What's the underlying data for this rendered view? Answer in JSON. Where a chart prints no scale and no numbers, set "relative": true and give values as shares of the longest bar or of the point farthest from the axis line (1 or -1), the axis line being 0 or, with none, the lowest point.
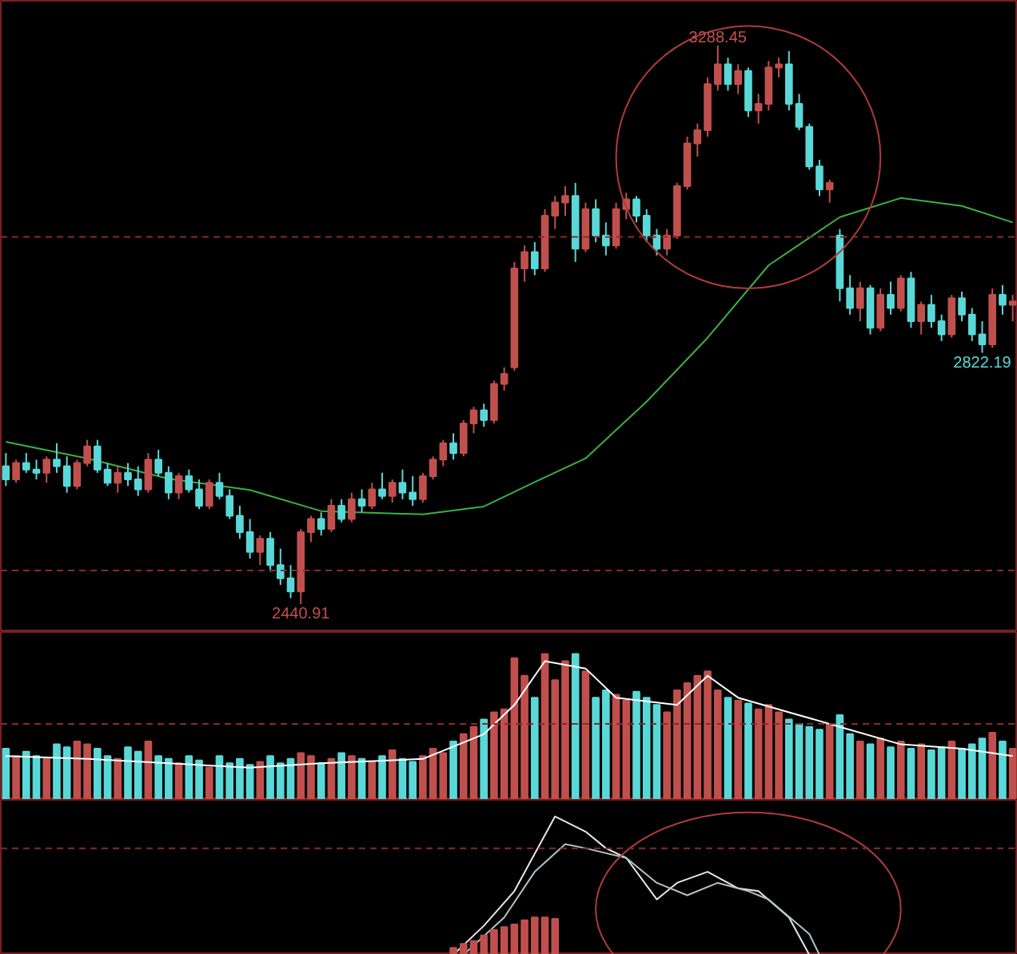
{
  "chart_data": [
    {
      "type": "candlestick",
      "tick_labels": false,
      "categories": [
        null,
        null,
        null,
        null,
        null,
        null,
        null,
        null,
        null,
        null,
        null,
        null,
        null,
        null,
        null,
        null,
        null,
        null,
        null,
        null,
        null,
        null,
        null,
        null,
        null,
        null,
        null,
        null,
        null,
        null,
        null,
        null,
        null,
        null,
        null,
        null,
        null,
        null,
        null,
        null,
        null,
        null,
        null,
        null,
        null,
        null,
        null,
        null,
        null,
        null,
        null,
        null,
        null,
        null,
        null,
        null,
        null,
        null,
        null,
        null,
        null,
        null,
        null,
        null,
        null,
        null,
        null,
        null,
        null,
        null,
        null,
        null,
        null,
        null,
        null,
        null,
        null,
        null,
        null,
        null,
        null,
        null,
        null,
        null,
        null,
        null,
        null,
        null,
        null,
        null,
        null,
        null,
        null,
        null,
        null,
        null,
        null,
        null,
        null,
        null
      ],
      "colors": [
        "#5ad8d8",
        "#c0504d",
        "#5ad8d8",
        "#5ad8d8",
        "#c0504d",
        "#5ad8d8",
        "#5ad8d8",
        "#c0504d",
        "#c0504d",
        "#5ad8d8",
        "#5ad8d8",
        "#c0504d",
        "#5ad8d8",
        "#5ad8d8",
        "#c0504d",
        "#5ad8d8",
        "#5ad8d8",
        "#c0504d",
        "#5ad8d8",
        "#5ad8d8",
        "#c0504d",
        "#5ad8d8",
        "#5ad8d8",
        "#5ad8d8",
        "#5ad8d8",
        "#c0504d",
        "#5ad8d8",
        "#5ad8d8",
        "#5ad8d8",
        "#c0504d",
        "#c0504d",
        "#5ad8d8",
        "#c0504d",
        "#5ad8d8",
        "#c0504d",
        "#5ad8d8",
        "#c0504d",
        "#5ad8d8",
        "#c0504d",
        "#5ad8d8",
        "#5ad8d8",
        "#c0504d",
        "#c0504d",
        "#c0504d",
        "#5ad8d8",
        "#c0504d",
        "#c0504d",
        "#5ad8d8",
        "#c0504d",
        "#c0504d",
        "#c0504d",
        "#c0504d",
        "#5ad8d8",
        "#c0504d",
        "#c0504d",
        "#c0504d",
        "#5ad8d8",
        "#c0504d",
        "#5ad8d8",
        "#5ad8d8",
        "#c0504d",
        "#c0504d",
        "#5ad8d8",
        "#5ad8d8",
        "#5ad8d8",
        "#c0504d",
        "#c0504d",
        "#c0504d",
        "#c0504d",
        "#c0504d",
        "#c0504d",
        "#5ad8d8",
        "#c0504d",
        "#5ad8d8",
        "#c0504d",
        "#c0504d",
        "#c0504d",
        "#5ad8d8",
        "#5ad8d8",
        "#5ad8d8",
        "#5ad8d8",
        "#c0504d",
        "#5ad8d8",
        "#5ad8d8",
        "#c0504d",
        "#5ad8d8",
        "#c0504d",
        "#5ad8d8",
        "#c0504d",
        "#5ad8d8",
        "#c0504d",
        "#5ad8d8",
        "#5ad8d8",
        "#c0504d",
        "#5ad8d8",
        "#5ad8d8",
        "#5ad8d8",
        "#c0504d",
        "#5ad8d8",
        "#c0504d"
      ],
      "ohlc": [
        [
          2650,
          2670,
          2620,
          2630
        ],
        [
          2630,
          2660,
          2625,
          2655
        ],
        [
          2655,
          2670,
          2640,
          2645
        ],
        [
          2645,
          2660,
          2630,
          2640
        ],
        [
          2640,
          2665,
          2625,
          2660
        ],
        [
          2660,
          2685,
          2640,
          2650
        ],
        [
          2650,
          2665,
          2610,
          2620
        ],
        [
          2620,
          2660,
          2615,
          2655
        ],
        [
          2655,
          2690,
          2650,
          2680
        ],
        [
          2680,
          2690,
          2640,
          2645
        ],
        [
          2645,
          2655,
          2620,
          2625
        ],
        [
          2625,
          2650,
          2610,
          2640
        ],
        [
          2640,
          2655,
          2620,
          2630
        ],
        [
          2630,
          2650,
          2605,
          2615
        ],
        [
          2615,
          2670,
          2610,
          2660
        ],
        [
          2660,
          2675,
          2635,
          2640
        ],
        [
          2640,
          2650,
          2600,
          2610
        ],
        [
          2610,
          2640,
          2600,
          2635
        ],
        [
          2635,
          2645,
          2610,
          2615
        ],
        [
          2615,
          2630,
          2585,
          2590
        ],
        [
          2590,
          2630,
          2585,
          2625
        ],
        [
          2625,
          2640,
          2600,
          2605
        ],
        [
          2605,
          2615,
          2570,
          2575
        ],
        [
          2575,
          2590,
          2540,
          2550
        ],
        [
          2550,
          2570,
          2510,
          2520
        ],
        [
          2520,
          2545,
          2500,
          2540
        ],
        [
          2540,
          2550,
          2490,
          2500
        ],
        [
          2500,
          2525,
          2470,
          2480
        ],
        [
          2480,
          2500,
          2450,
          2460
        ],
        [
          2460,
          2555,
          2440.91,
          2550
        ],
        [
          2550,
          2575,
          2535,
          2570
        ],
        [
          2570,
          2580,
          2545,
          2555
        ],
        [
          2555,
          2600,
          2550,
          2590
        ],
        [
          2590,
          2600,
          2565,
          2570
        ],
        [
          2570,
          2610,
          2565,
          2600
        ],
        [
          2600,
          2615,
          2580,
          2590
        ],
        [
          2590,
          2625,
          2585,
          2615
        ],
        [
          2615,
          2640,
          2600,
          2605
        ],
        [
          2605,
          2630,
          2595,
          2625
        ],
        [
          2625,
          2645,
          2600,
          2610
        ],
        [
          2610,
          2635,
          2590,
          2600
        ],
        [
          2600,
          2640,
          2595,
          2635
        ],
        [
          2635,
          2665,
          2630,
          2660
        ],
        [
          2660,
          2690,
          2650,
          2685
        ],
        [
          2685,
          2700,
          2660,
          2670
        ],
        [
          2670,
          2720,
          2665,
          2715
        ],
        [
          2715,
          2740,
          2700,
          2735
        ],
        [
          2735,
          2745,
          2710,
          2720
        ],
        [
          2720,
          2780,
          2715,
          2775
        ],
        [
          2775,
          2800,
          2765,
          2790
        ],
        [
          2800,
          2960,
          2795,
          2950
        ],
        [
          2950,
          2985,
          2930,
          2975
        ],
        [
          2975,
          2990,
          2940,
          2950
        ],
        [
          2950,
          3040,
          2945,
          3030
        ],
        [
          3030,
          3060,
          3010,
          3050
        ],
        [
          3050,
          3075,
          3030,
          3060
        ],
        [
          3060,
          3080,
          2960,
          2980
        ],
        [
          2980,
          3050,
          2975,
          3040
        ],
        [
          3040,
          3055,
          2990,
          3000
        ],
        [
          3000,
          3020,
          2970,
          2985
        ],
        [
          2985,
          3050,
          2980,
          3040
        ],
        [
          3040,
          3065,
          3025,
          3055
        ],
        [
          3055,
          3060,
          3020,
          3030
        ],
        [
          3030,
          3040,
          2990,
          3000
        ],
        [
          3000,
          3010,
          2970,
          2980
        ],
        [
          2980,
          3010,
          2970,
          3000
        ],
        [
          3000,
          3080,
          2995,
          3075
        ],
        [
          3075,
          3150,
          3070,
          3140
        ],
        [
          3140,
          3170,
          3120,
          3160
        ],
        [
          3160,
          3240,
          3150,
          3230
        ],
        [
          3230,
          3288.45,
          3220,
          3260
        ],
        [
          3260,
          3270,
          3220,
          3230
        ],
        [
          3230,
          3260,
          3215,
          3250
        ],
        [
          3250,
          3255,
          3180,
          3190
        ],
        [
          3190,
          3215,
          3170,
          3200
        ],
        [
          3200,
          3265,
          3190,
          3255
        ],
        [
          3255,
          3270,
          3240,
          3260
        ],
        [
          3260,
          3280,
          3190,
          3200
        ],
        [
          3200,
          3215,
          3160,
          3165
        ],
        [
          3165,
          3170,
          3100,
          3105
        ],
        [
          3105,
          3115,
          3060,
          3070
        ],
        [
          3070,
          3085,
          3050,
          3080
        ],
        [
          3000,
          3010,
          2900,
          2920
        ],
        [
          2920,
          2940,
          2880,
          2890
        ],
        [
          2890,
          2930,
          2870,
          2920
        ],
        [
          2920,
          2925,
          2850,
          2860
        ],
        [
          2860,
          2920,
          2855,
          2910
        ],
        [
          2910,
          2930,
          2880,
          2890
        ],
        [
          2890,
          2940,
          2885,
          2935
        ],
        [
          2935,
          2945,
          2860,
          2870
        ],
        [
          2870,
          2900,
          2850,
          2895
        ],
        [
          2895,
          2910,
          2860,
          2870
        ],
        [
          2870,
          2880,
          2840,
          2850
        ],
        [
          2850,
          2910,
          2845,
          2905
        ],
        [
          2905,
          2915,
          2870,
          2880
        ],
        [
          2880,
          2890,
          2840,
          2850
        ],
        [
          2850,
          2870,
          2822.19,
          2835
        ],
        [
          2835,
          2920,
          2830,
          2910
        ],
        [
          2910,
          2925,
          2880,
          2895
        ],
        [
          2895,
          2910,
          2870,
          2900
        ]
      ],
      "series": [
        {
          "type": "line",
          "color": "#3cb043",
          "values": [
            2687,
            null,
            null,
            null,
            null,
            null,
            null,
            null,
            2662,
            null,
            null,
            null,
            null,
            null,
            null,
            null,
            2631,
            null,
            null,
            null,
            null,
            null,
            null,
            null,
            2614,
            null,
            null,
            null,
            null,
            null,
            null,
            2582,
            null,
            null,
            null,
            null,
            null,
            null,
            null,
            null,
            null,
            2577,
            null,
            null,
            null,
            null,
            null,
            2589,
            null,
            null,
            null,
            null,
            2626,
            null,
            null,
            null,
            null,
            2662,
            null,
            null,
            null,
            null,
            null,
            2748,
            null,
            null,
            null,
            null,
            null,
            2845,
            null,
            null,
            null,
            null,
            null,
            2955,
            null,
            null,
            null,
            null,
            null,
            null,
            3028,
            null,
            null,
            null,
            null,
            null,
            3057,
            null,
            null,
            null,
            null,
            null,
            3045,
            null,
            null,
            null,
            null,
            3020
          ]
        }
      ],
      "ref_lines": [
        {
          "axis": "y",
          "value": 2998,
          "color": "#8b2a2a",
          "line_style": "dashed"
        },
        {
          "axis": "y",
          "value": 2492,
          "color": "#8b2a2a",
          "line_style": "dashed"
        }
      ],
      "annotations": [
        {
          "text": "3288.45",
          "y": 3288.45
        },
        {
          "text": "2440.91",
          "y": 2440.91
        },
        {
          "text": "2822.19",
          "y": 2822.19
        }
      ]
    },
    {
      "type": "bar",
      "relative": true,
      "tick_labels": false,
      "categories": [
        null,
        null,
        null,
        null,
        null,
        null,
        null,
        null,
        null,
        null,
        null,
        null,
        null,
        null,
        null,
        null,
        null,
        null,
        null,
        null,
        null,
        null,
        null,
        null,
        null,
        null,
        null,
        null,
        null,
        null,
        null,
        null,
        null,
        null,
        null,
        null,
        null,
        null,
        null,
        null,
        null,
        null,
        null,
        null,
        null,
        null,
        null,
        null,
        null,
        null,
        null,
        null,
        null,
        null,
        null,
        null,
        null,
        null,
        null,
        null,
        null,
        null,
        null,
        null,
        null,
        null,
        null,
        null,
        null,
        null,
        null,
        null,
        null,
        null,
        null,
        null,
        null,
        null,
        null,
        null,
        null,
        null,
        null,
        null,
        null,
        null,
        null,
        null,
        null,
        null,
        null,
        null,
        null,
        null,
        null,
        null,
        null,
        null,
        null,
        null
      ],
      "series": [
        {
          "values": [
            0.35,
            0.3,
            0.33,
            0.3,
            0.28,
            0.38,
            0.36,
            0.4,
            0.38,
            0.35,
            0.3,
            0.28,
            0.36,
            0.33,
            0.4,
            0.3,
            0.28,
            0.25,
            0.3,
            0.27,
            0.22,
            0.3,
            0.25,
            0.28,
            0.24,
            0.26,
            0.3,
            0.25,
            0.28,
            0.32,
            0.3,
            0.25,
            0.28,
            0.32,
            0.3,
            0.28,
            0.26,
            0.3,
            0.34,
            0.28,
            0.26,
            0.3,
            0.35,
            0.32,
            0.4,
            0.45,
            0.5,
            0.55,
            0.6,
            0.62,
            0.97,
            0.85,
            0.7,
            1.0,
            0.82,
            0.95,
            1.0,
            0.88,
            0.7,
            0.75,
            0.72,
            0.68,
            0.74,
            0.7,
            0.65,
            0.6,
            0.75,
            0.8,
            0.85,
            0.88,
            0.75,
            0.7,
            0.68,
            0.66,
            0.62,
            0.65,
            0.6,
            0.55,
            0.52,
            0.5,
            0.48,
            0.52,
            0.58,
            0.45,
            0.4,
            0.38,
            0.42,
            0.36,
            0.4,
            0.35,
            0.38,
            0.34,
            0.36,
            0.4,
            0.35,
            0.38,
            0.42,
            0.46,
            0.4,
            0.35
          ],
          "colors": [
            "#5ad8d8",
            "#c0504d",
            "#5ad8d8",
            "#5ad8d8",
            "#c0504d",
            "#5ad8d8",
            "#5ad8d8",
            "#c0504d",
            "#c0504d",
            "#5ad8d8",
            "#5ad8d8",
            "#c0504d",
            "#5ad8d8",
            "#5ad8d8",
            "#c0504d",
            "#5ad8d8",
            "#5ad8d8",
            "#c0504d",
            "#5ad8d8",
            "#5ad8d8",
            "#c0504d",
            "#5ad8d8",
            "#5ad8d8",
            "#5ad8d8",
            "#5ad8d8",
            "#c0504d",
            "#5ad8d8",
            "#5ad8d8",
            "#5ad8d8",
            "#c0504d",
            "#c0504d",
            "#5ad8d8",
            "#c0504d",
            "#5ad8d8",
            "#c0504d",
            "#5ad8d8",
            "#c0504d",
            "#5ad8d8",
            "#c0504d",
            "#5ad8d8",
            "#5ad8d8",
            "#c0504d",
            "#c0504d",
            "#c0504d",
            "#5ad8d8",
            "#c0504d",
            "#c0504d",
            "#5ad8d8",
            "#c0504d",
            "#c0504d",
            "#c0504d",
            "#c0504d",
            "#5ad8d8",
            "#c0504d",
            "#c0504d",
            "#c0504d",
            "#5ad8d8",
            "#c0504d",
            "#5ad8d8",
            "#5ad8d8",
            "#c0504d",
            "#c0504d",
            "#5ad8d8",
            "#5ad8d8",
            "#5ad8d8",
            "#c0504d",
            "#c0504d",
            "#c0504d",
            "#c0504d",
            "#c0504d",
            "#c0504d",
            "#5ad8d8",
            "#c0504d",
            "#5ad8d8",
            "#c0504d",
            "#c0504d",
            "#c0504d",
            "#5ad8d8",
            "#5ad8d8",
            "#5ad8d8",
            "#5ad8d8",
            "#c0504d",
            "#5ad8d8",
            "#5ad8d8",
            "#c0504d",
            "#5ad8d8",
            "#c0504d",
            "#5ad8d8",
            "#c0504d",
            "#5ad8d8",
            "#c0504d",
            "#5ad8d8",
            "#5ad8d8",
            "#c0504d",
            "#5ad8d8",
            "#5ad8d8",
            "#5ad8d8",
            "#c0504d",
            "#5ad8d8",
            "#c0504d"
          ]
        },
        {
          "type": "line",
          "color": "#ffffff",
          "values": [
            0.3,
            null,
            null,
            null,
            null,
            null,
            null,
            null,
            0.28,
            null,
            null,
            null,
            null,
            null,
            null,
            null,
            0.25,
            null,
            null,
            null,
            null,
            null,
            null,
            null,
            0.22,
            null,
            null,
            null,
            null,
            null,
            null,
            0.25,
            null,
            null,
            null,
            null,
            null,
            null,
            null,
            null,
            null,
            0.28,
            null,
            null,
            null,
            null,
            null,
            0.45,
            null,
            null,
            0.65,
            null,
            null,
            0.95,
            null,
            null,
            null,
            0.9,
            null,
            null,
            0.7,
            null,
            null,
            null,
            null,
            null,
            0.65,
            null,
            null,
            0.85,
            null,
            null,
            0.7,
            null,
            null,
            null,
            null,
            0.6,
            null,
            null,
            null,
            null,
            0.5,
            null,
            null,
            null,
            null,
            null,
            0.38,
            null,
            null,
            null,
            null,
            null,
            0.35,
            null,
            null,
            null,
            null,
            0.3
          ]
        }
      ],
      "ref_lines": [
        {
          "axis": "y",
          "value": 0.52,
          "color": "#8b2a2a",
          "line_style": "dashed"
        }
      ]
    },
    {
      "type": "line",
      "relative": true,
      "tick_labels": false,
      "categories": [
        null,
        null,
        null,
        null,
        null,
        null,
        null,
        null,
        null,
        null,
        null,
        null,
        null,
        null,
        null,
        null,
        null,
        null,
        null,
        null,
        null,
        null,
        null,
        null,
        null,
        null,
        null,
        null,
        null,
        null,
        null,
        null,
        null,
        null,
        null,
        null,
        null,
        null,
        null,
        null,
        null,
        null,
        null,
        null,
        null,
        null,
        null,
        null,
        null,
        null,
        null,
        null,
        null,
        null,
        null,
        null,
        null,
        null,
        null,
        null,
        null,
        null,
        null,
        null,
        null,
        null,
        null,
        null,
        null,
        null,
        null,
        null,
        null,
        null,
        null,
        null,
        null,
        null,
        null,
        null,
        null,
        null,
        null,
        null,
        null,
        null,
        null,
        null,
        null,
        null,
        null,
        null,
        null,
        null,
        null,
        null,
        null,
        null,
        null,
        null
      ],
      "series": [
        {
          "color": "#e8e8e8",
          "values": [
            null,
            null,
            null,
            null,
            null,
            null,
            null,
            null,
            null,
            null,
            null,
            null,
            null,
            null,
            null,
            null,
            null,
            null,
            null,
            null,
            null,
            null,
            null,
            null,
            null,
            null,
            null,
            null,
            null,
            null,
            null,
            null,
            null,
            null,
            null,
            null,
            null,
            null,
            null,
            null,
            null,
            null,
            null,
            null,
            0,
            null,
            null,
            0.21,
            null,
            null,
            0.46,
            null,
            null,
            null,
            1.0,
            null,
            null,
            0.89,
            null,
            0.77,
            null,
            0.7,
            null,
            null,
            0.4,
            null,
            0.52,
            null,
            null,
            0.6,
            null,
            null,
            0.48,
            null,
            0.46,
            null,
            null,
            0.27,
            null,
            0,
            null,
            null,
            null,
            null,
            null,
            null,
            null,
            null,
            null,
            null,
            null,
            null,
            null,
            null,
            null,
            null,
            null,
            null,
            null,
            null
          ]
        },
        {
          "color": "#b0c4c4",
          "values": [
            null,
            null,
            null,
            null,
            null,
            null,
            null,
            null,
            null,
            null,
            null,
            null,
            null,
            null,
            null,
            null,
            null,
            null,
            null,
            null,
            null,
            null,
            null,
            null,
            null,
            null,
            null,
            null,
            null,
            null,
            null,
            null,
            null,
            null,
            null,
            null,
            null,
            null,
            null,
            null,
            null,
            null,
            null,
            null,
            null,
            0,
            null,
            null,
            null,
            0.27,
            null,
            null,
            0.6,
            null,
            null,
            0.8,
            null,
            0.77,
            null,
            null,
            null,
            0.7,
            null,
            null,
            0.52,
            null,
            null,
            0.43,
            null,
            null,
            0.52,
            null,
            null,
            0.46,
            null,
            0.4,
            null,
            null,
            null,
            0.15,
            0,
            null,
            null,
            null,
            null,
            null,
            null,
            null,
            null,
            null,
            null,
            null,
            null,
            null,
            null,
            null,
            null,
            null,
            null,
            null
          ]
        },
        {
          "type": "bar",
          "color": "#c0504d",
          "values": [
            null,
            null,
            null,
            null,
            null,
            null,
            null,
            null,
            null,
            null,
            null,
            null,
            null,
            null,
            null,
            null,
            null,
            null,
            null,
            null,
            null,
            null,
            null,
            null,
            null,
            null,
            null,
            null,
            null,
            null,
            null,
            null,
            null,
            null,
            null,
            null,
            null,
            null,
            null,
            null,
            null,
            null,
            null,
            null,
            0.05,
            0.08,
            0.1,
            0.14,
            0.18,
            0.2,
            0.22,
            0.25,
            0.27,
            0.27,
            0.26,
            null,
            null,
            null,
            null,
            null,
            null,
            null,
            null,
            null,
            null,
            null,
            null,
            null,
            null,
            null,
            null,
            null,
            null,
            null,
            null,
            null,
            null,
            null,
            null,
            null,
            null,
            null,
            null,
            null,
            null,
            null,
            null,
            null,
            null,
            null,
            null,
            null,
            null,
            null,
            null,
            null,
            null,
            null,
            null,
            null
          ]
        }
      ],
      "ref_lines": [
        {
          "axis": "y",
          "value": 0.77,
          "color": "#8b2a2a",
          "line_style": "dashed"
        }
      ]
    }
  ]
}
